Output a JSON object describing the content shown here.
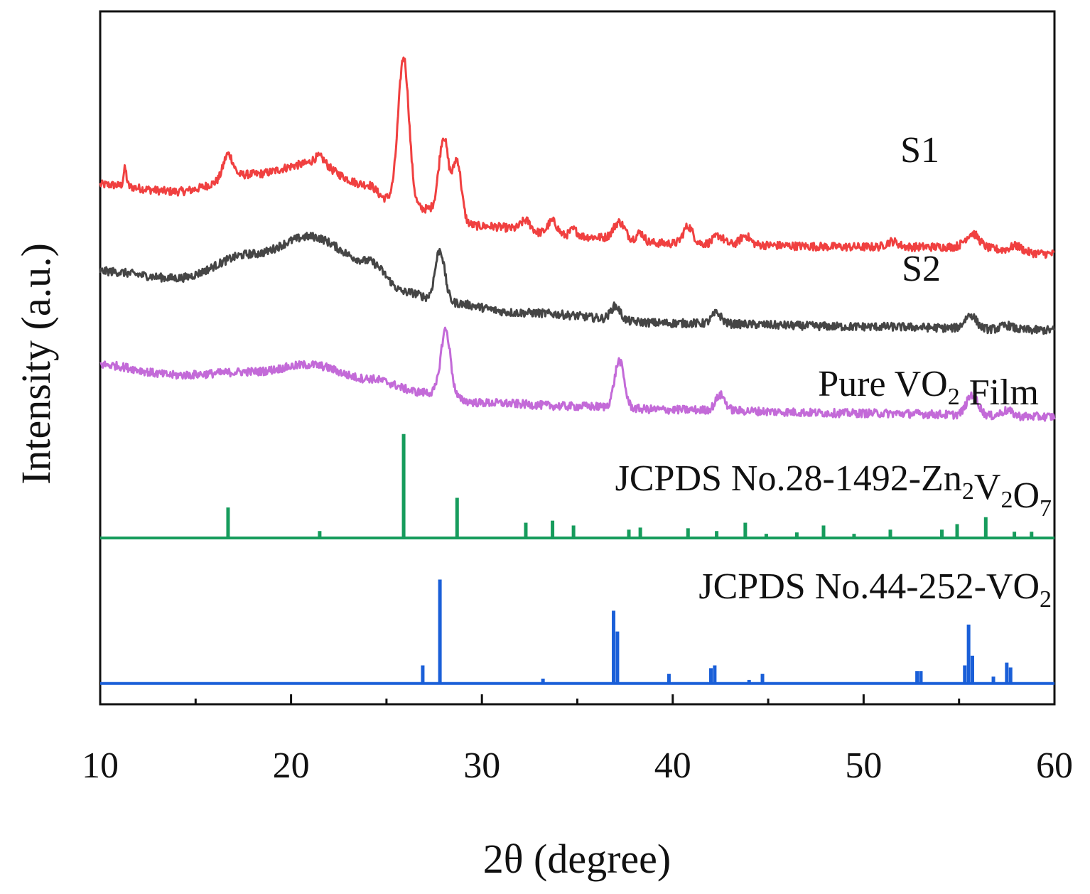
{
  "chart_data": {
    "type": "line",
    "title": "",
    "xlabel": "2θ (degree)",
    "ylabel": "Intensity (a.u.)",
    "xlim": [
      10,
      60
    ],
    "ylim": [
      0,
      100
    ],
    "xticks": [
      10,
      20,
      30,
      40,
      50,
      60
    ],
    "yticks": [],
    "grid": false,
    "legend": "inline labels beside each trace, right side",
    "series": [
      {
        "name": "S1",
        "label_parts": [
          {
            "t": "S1"
          }
        ],
        "color": "#f04040",
        "kind": "line",
        "baseline": [
          [
            10,
            75.0
          ],
          [
            14,
            74.0
          ],
          [
            18,
            76.5
          ],
          [
            21,
            78.0
          ],
          [
            24,
            75.0
          ],
          [
            25,
            73.0
          ],
          [
            27,
            71.5
          ],
          [
            30,
            69.0
          ],
          [
            35,
            67.5
          ],
          [
            40,
            66.5
          ],
          [
            50,
            66.0
          ],
          [
            55,
            66.0
          ],
          [
            60,
            65.0
          ]
        ],
        "peaks": [
          [
            11.3,
            2.5,
            0.08
          ],
          [
            16.7,
            3.5,
            0.25
          ],
          [
            21.5,
            1.2,
            0.3
          ],
          [
            25.9,
            21.0,
            0.28
          ],
          [
            28.0,
            11.0,
            0.25
          ],
          [
            28.7,
            8.5,
            0.22
          ],
          [
            32.3,
            1.5,
            0.25
          ],
          [
            33.7,
            2.0,
            0.25
          ],
          [
            34.8,
            1.0,
            0.2
          ],
          [
            37.2,
            2.5,
            0.3
          ],
          [
            38.3,
            1.3,
            0.2
          ],
          [
            40.8,
            2.5,
            0.25
          ],
          [
            42.4,
            1.2,
            0.25
          ],
          [
            43.8,
            1.3,
            0.25
          ],
          [
            51.5,
            0.8,
            0.3
          ],
          [
            55.7,
            2.0,
            0.35
          ],
          [
            58.0,
            0.8,
            0.3
          ]
        ]
      },
      {
        "name": "S2",
        "label_parts": [
          {
            "t": "S2"
          }
        ],
        "color": "#454545",
        "kind": "line",
        "baseline": [
          [
            10,
            62.5
          ],
          [
            14,
            61.5
          ],
          [
            18,
            65.0
          ],
          [
            21,
            67.5
          ],
          [
            24,
            64.0
          ],
          [
            26,
            59.5
          ],
          [
            28,
            58.0
          ],
          [
            32,
            56.5
          ],
          [
            40,
            55.0
          ],
          [
            50,
            54.5
          ],
          [
            60,
            54.0
          ]
        ],
        "peaks": [
          [
            27.8,
            7.5,
            0.25
          ],
          [
            37.0,
            2.0,
            0.25
          ],
          [
            42.3,
            1.5,
            0.25
          ],
          [
            55.6,
            2.0,
            0.3
          ],
          [
            57.5,
            0.6,
            0.3
          ]
        ]
      },
      {
        "name": "Pure VO2 Film",
        "label_parts": [
          {
            "t": "Pure VO"
          },
          {
            "t": "2",
            "sub": true
          },
          {
            "t": " Film"
          }
        ],
        "color": "#c36ad8",
        "kind": "line",
        "baseline": [
          [
            10,
            49.0
          ],
          [
            14,
            47.5
          ],
          [
            18,
            48.0
          ],
          [
            21,
            49.0
          ],
          [
            24,
            47.0
          ],
          [
            27,
            45.0
          ],
          [
            30,
            43.5
          ],
          [
            35,
            43.0
          ],
          [
            40,
            42.5
          ],
          [
            50,
            42.0
          ],
          [
            60,
            41.5
          ]
        ],
        "peaks": [
          [
            28.1,
            9.5,
            0.25
          ],
          [
            37.2,
            6.8,
            0.25
          ],
          [
            42.5,
            2.2,
            0.25
          ],
          [
            55.7,
            3.0,
            0.3
          ],
          [
            57.5,
            0.8,
            0.3
          ]
        ]
      },
      {
        "name": "JCPDS No.28-1492-Zn2V2O7",
        "label_parts": [
          {
            "t": "JCPDS No.28-1492-Zn"
          },
          {
            "t": "2",
            "sub": true
          },
          {
            "t": "V"
          },
          {
            "t": "2",
            "sub": true
          },
          {
            "t": "O"
          },
          {
            "t": "7",
            "sub": true
          }
        ],
        "color": "#169c5c",
        "kind": "stick",
        "base": 24.0,
        "sticks": [
          [
            16.7,
            4.4
          ],
          [
            21.5,
            1.0
          ],
          [
            25.9,
            15.0
          ],
          [
            28.7,
            5.8
          ],
          [
            32.3,
            2.2
          ],
          [
            33.7,
            2.5
          ],
          [
            34.8,
            1.8
          ],
          [
            37.7,
            1.2
          ],
          [
            38.3,
            1.5
          ],
          [
            40.8,
            1.4
          ],
          [
            42.3,
            1.0
          ],
          [
            43.8,
            2.2
          ],
          [
            44.9,
            0.6
          ],
          [
            46.5,
            0.8
          ],
          [
            47.9,
            1.8
          ],
          [
            49.5,
            0.6
          ],
          [
            51.4,
            1.2
          ],
          [
            54.1,
            1.2
          ],
          [
            54.9,
            2.0
          ],
          [
            56.4,
            3.0
          ],
          [
            57.9,
            0.9
          ],
          [
            58.8,
            0.9
          ]
        ]
      },
      {
        "name": "JCPDS No.44-252-VO2",
        "label_parts": [
          {
            "t": "JCPDS No.44-252-VO"
          },
          {
            "t": "2",
            "sub": true
          }
        ],
        "color": "#1a5fd8",
        "kind": "stick",
        "base": 3.0,
        "sticks": [
          [
            26.9,
            2.6
          ],
          [
            27.8,
            15.0
          ],
          [
            33.2,
            0.7
          ],
          [
            36.9,
            10.5
          ],
          [
            37.1,
            7.5
          ],
          [
            39.8,
            1.4
          ],
          [
            42.0,
            2.2
          ],
          [
            42.2,
            2.6
          ],
          [
            44.0,
            0.5
          ],
          [
            44.7,
            1.4
          ],
          [
            52.8,
            1.8
          ],
          [
            53.0,
            1.8
          ],
          [
            55.3,
            2.6
          ],
          [
            55.5,
            8.5
          ],
          [
            55.7,
            4.0
          ],
          [
            56.8,
            1.0
          ],
          [
            57.5,
            3.0
          ],
          [
            57.7,
            2.3
          ]
        ]
      }
    ]
  }
}
